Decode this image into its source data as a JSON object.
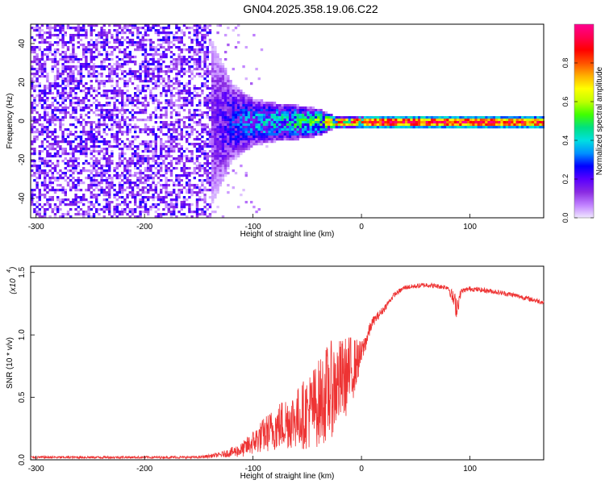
{
  "figure_title": "GN04.2025.358.19.06.C22",
  "chart_data": [
    {
      "type": "heatmap",
      "title": "GN04.2025.358.19.06.C22",
      "xlabel": "Height of straight line (km)",
      "ylabel": "Frequency (Hz)",
      "xlim": [
        -305,
        168
      ],
      "ylim": [
        -50,
        50
      ],
      "xticks": [
        -300,
        -200,
        -100,
        0,
        100
      ],
      "yticks": [
        -40,
        -20,
        0,
        20,
        40
      ],
      "colorbar": {
        "label": "Normalized spectral amplitude",
        "range": [
          0,
          1
        ],
        "ticks": [
          "0.0",
          "0.2",
          "0.4",
          "0.6",
          "0.8"
        ],
        "colors": [
          "#f0e8ff",
          "#c080ff",
          "#8a2be2",
          "#5a00ff",
          "#0000ff",
          "#0090ff",
          "#00e0e0",
          "#00e080",
          "#40ff00",
          "#c0ff00",
          "#ffff00",
          "#ffb000",
          "#ff5000",
          "#ff0000",
          "#ff0050",
          "#ff0090"
        ]
      },
      "band_profile": {
        "x": [
          -305,
          -145,
          -120,
          -100,
          -80,
          -60,
          -40,
          -30,
          -20,
          0,
          50,
          100,
          168
        ],
        "halfwidth_hz": [
          50,
          50,
          20,
          12,
          10,
          9,
          7,
          4,
          3,
          3,
          3,
          3,
          3
        ],
        "peak_amplitude": [
          0.12,
          0.12,
          0.3,
          0.4,
          0.45,
          0.5,
          0.6,
          0.75,
          0.85,
          0.95,
          0.97,
          0.95,
          0.9
        ]
      }
    },
    {
      "type": "line",
      "xlabel": "Height of straight line (km)",
      "ylabel": "SNR (10 * v/v)",
      "yscale_label": "(x10",
      "yscale_exp": "4",
      "xlim": [
        -305,
        168
      ],
      "ylim": [
        0,
        1.55
      ],
      "xticks": [
        -300,
        -200,
        -100,
        0,
        100
      ],
      "yticks": [
        "0.0",
        "0.5",
        "1.0",
        "1.5"
      ],
      "series": [
        {
          "name": "SNR",
          "color": "#ee3333",
          "x": [
            -305,
            -250,
            -200,
            -150,
            -130,
            -110,
            -100,
            -90,
            -80,
            -70,
            -60,
            -50,
            -40,
            -30,
            -20,
            -10,
            0,
            10,
            20,
            30,
            40,
            60,
            80,
            88,
            92,
            100,
            120,
            140,
            168
          ],
          "values": [
            0.02,
            0.02,
            0.02,
            0.02,
            0.04,
            0.08,
            0.14,
            0.2,
            0.25,
            0.3,
            0.33,
            0.38,
            0.45,
            0.55,
            0.62,
            0.7,
            0.85,
            1.1,
            1.2,
            1.32,
            1.38,
            1.4,
            1.38,
            1.22,
            1.35,
            1.37,
            1.35,
            1.32,
            1.26
          ],
          "noise_amplitude": [
            0.01,
            0.01,
            0.01,
            0.01,
            0.02,
            0.06,
            0.1,
            0.14,
            0.18,
            0.22,
            0.24,
            0.3,
            0.35,
            0.4,
            0.35,
            0.3,
            0.1,
            0.04,
            0.03,
            0.02,
            0.02,
            0.02,
            0.02,
            0.1,
            0.02,
            0.02,
            0.02,
            0.02,
            0.02
          ]
        }
      ]
    }
  ]
}
